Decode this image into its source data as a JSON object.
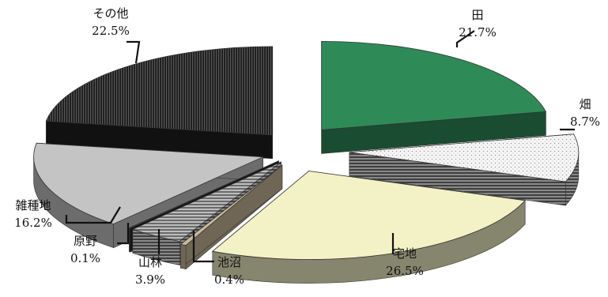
{
  "chart_data": {
    "type": "pie",
    "title": "",
    "legend": "none",
    "style": "exploded-3d",
    "slices": [
      {
        "name": "田",
        "value_label": "21.7%",
        "value": 21.7,
        "color": "#2e8b57",
        "pattern": "solid"
      },
      {
        "name": "畑",
        "value_label": "8.7%",
        "value": 8.7,
        "color": "#f2f2f2",
        "pattern": "dots"
      },
      {
        "name": "宅地",
        "value_label": "26.5%",
        "value": 26.5,
        "color": "#f3f2c6",
        "pattern": "solid"
      },
      {
        "name": "池沼",
        "value_label": "0.4%",
        "value": 0.4,
        "color": "#c9b99a",
        "pattern": "solid"
      },
      {
        "name": "山林",
        "value_label": "3.9%",
        "value": 3.9,
        "color": "#9a9a9a",
        "pattern": "horizontal-stripes"
      },
      {
        "name": "原野",
        "value_label": "0.1%",
        "value": 0.1,
        "color": "#222222",
        "pattern": "solid"
      },
      {
        "name": "雑種地",
        "value_label": "16.2%",
        "value": 16.2,
        "color": "#c4c4c4",
        "pattern": "solid"
      },
      {
        "name": "その他",
        "value_label": "22.5%",
        "value": 22.5,
        "color": "#2b2b2b",
        "pattern": "vertical-stripes"
      }
    ]
  }
}
